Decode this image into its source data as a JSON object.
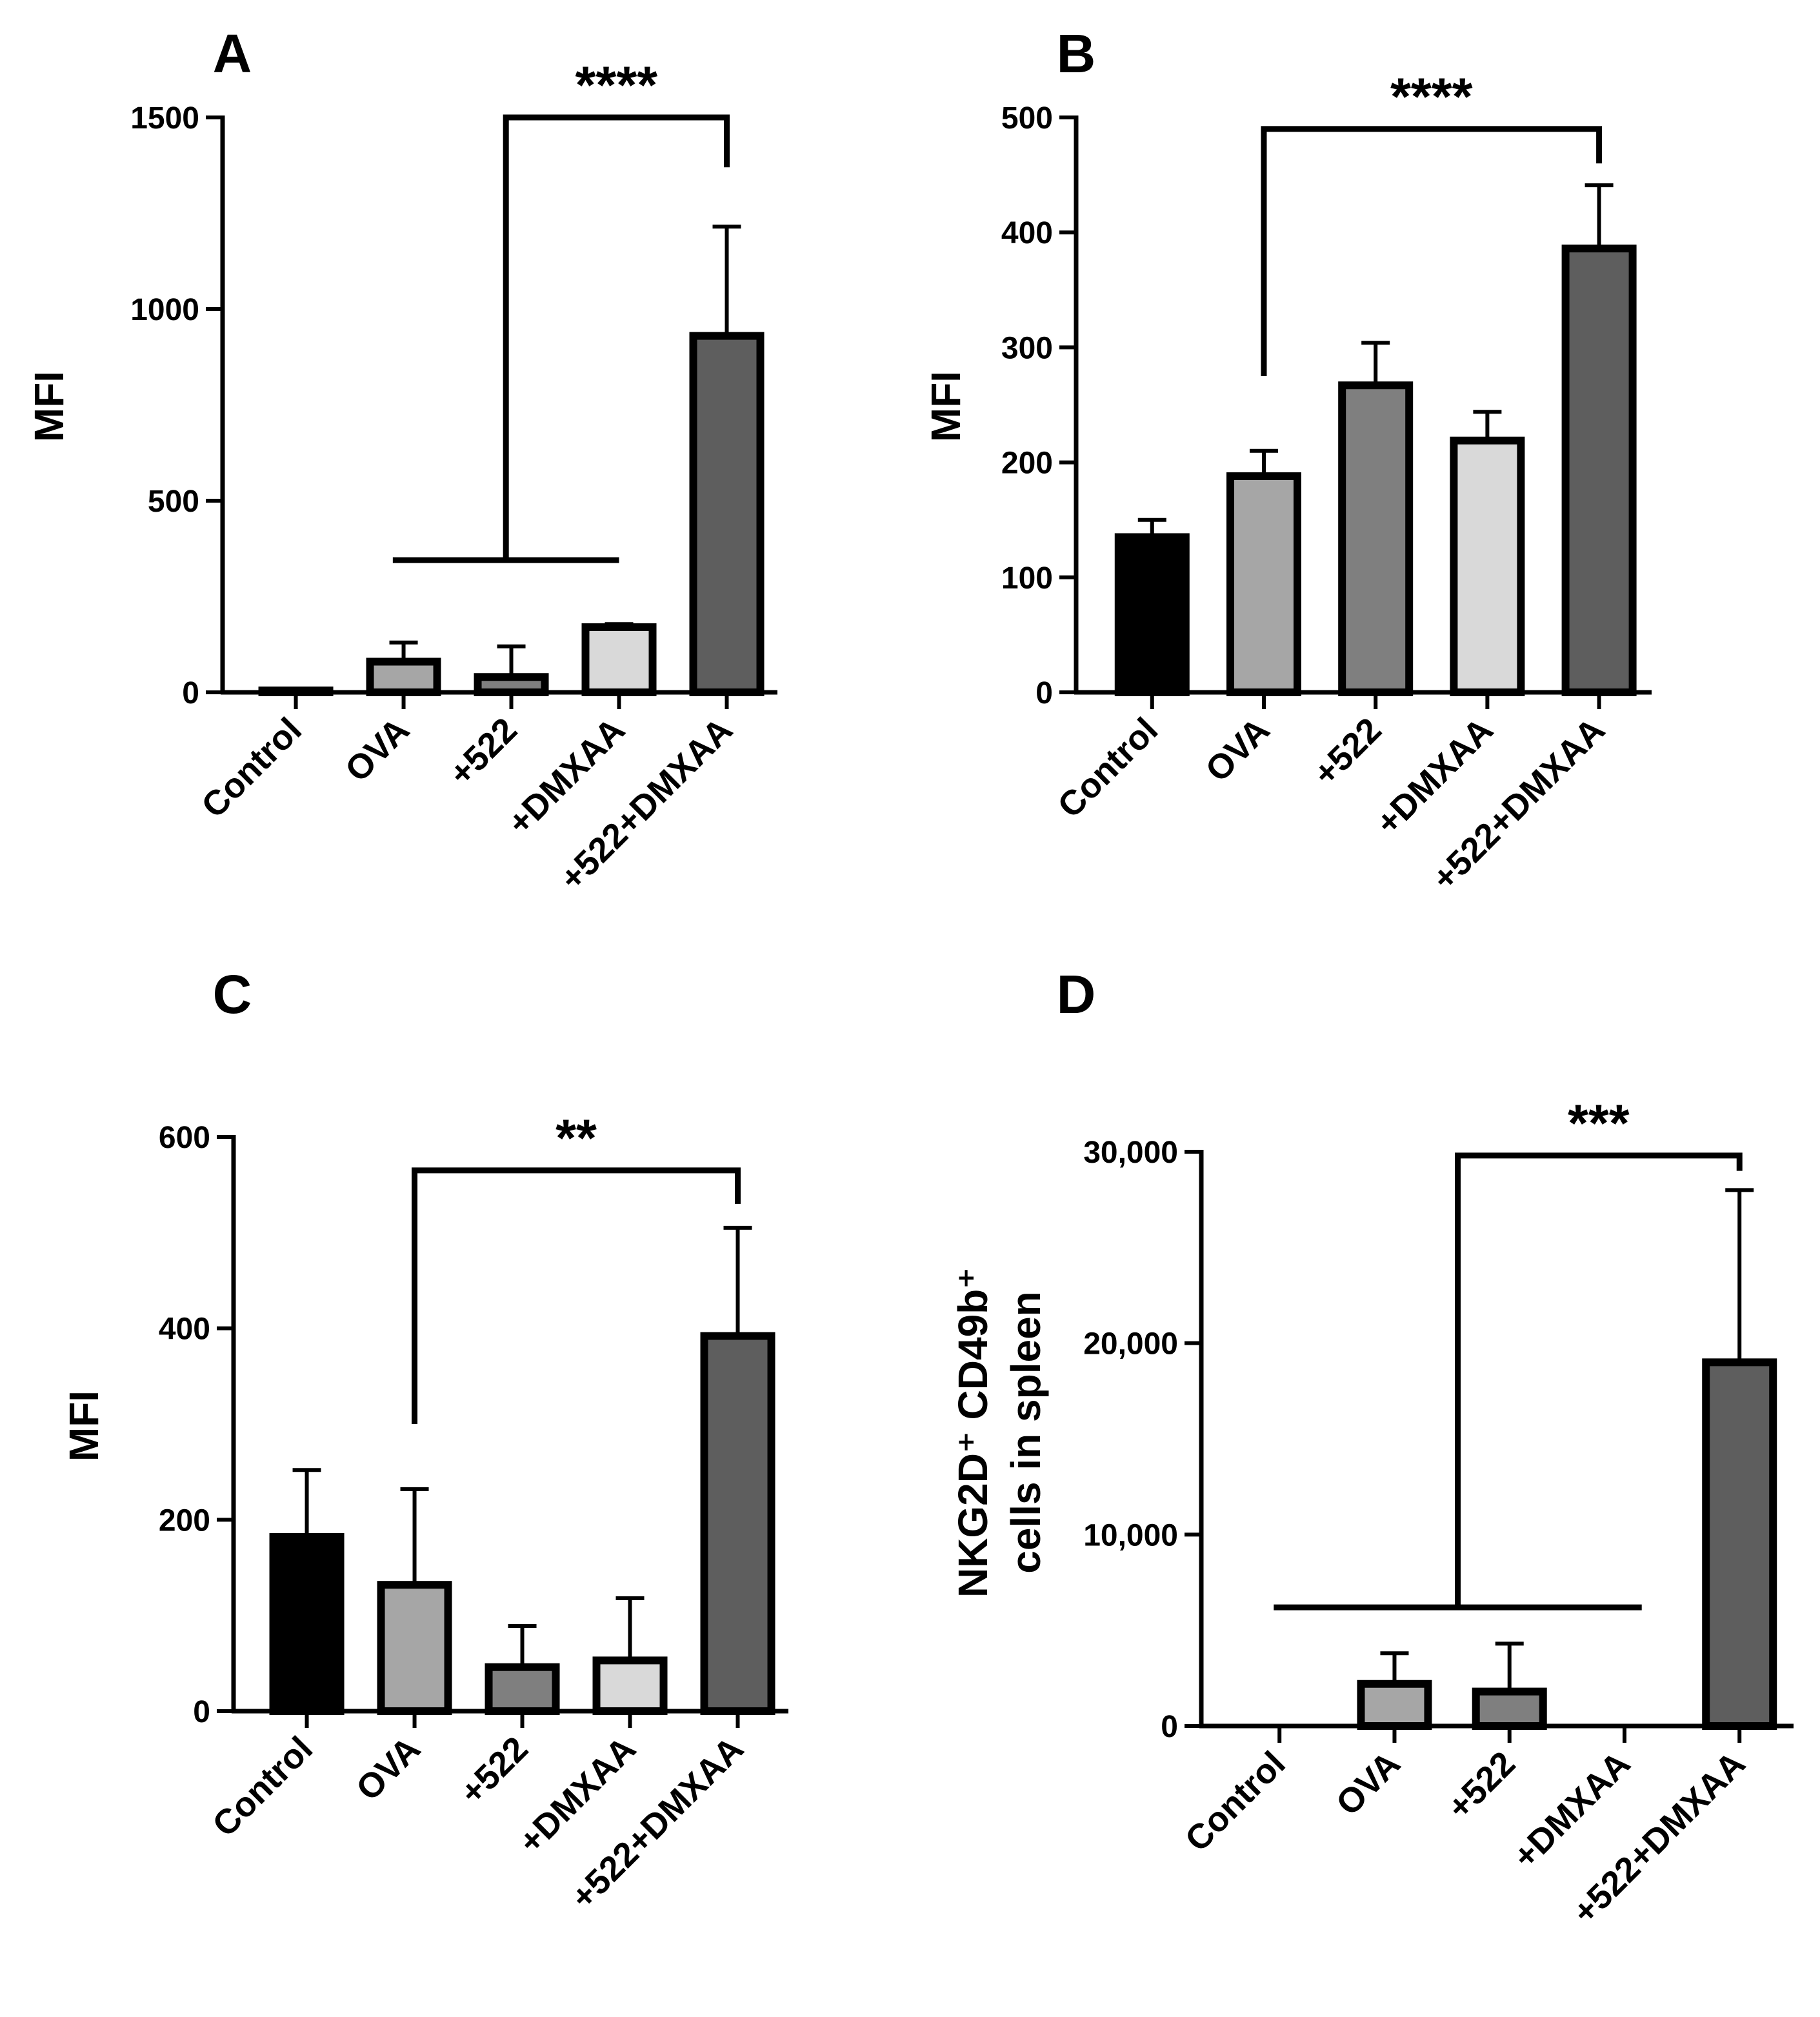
{
  "figure": {
    "panels": [
      {
        "letter": "A",
        "ylabel": "MFI",
        "ytick_labels": [
          "0",
          "500",
          "1000",
          "1500"
        ],
        "significance": "****"
      },
      {
        "letter": "B",
        "ylabel": "MFI",
        "ytick_labels": [
          "0",
          "100",
          "200",
          "300",
          "400",
          "500"
        ],
        "significance": "****"
      },
      {
        "letter": "C",
        "ylabel": "MFI",
        "ytick_labels": [
          "0",
          "200",
          "400",
          "600"
        ],
        "significance": "**"
      },
      {
        "letter": "D",
        "ylabel_line1": "NKG2D⁺ CD49b⁺",
        "ylabel_line2": "cells in spleen",
        "ytick_labels": [
          "0",
          "10,000",
          "20,000",
          "30,000"
        ],
        "significance": "***"
      }
    ]
  },
  "chart_data": [
    {
      "type": "bar",
      "panel": "A",
      "categories": [
        "Control",
        "OVA",
        "+522",
        "+DMXAA",
        "+522+DMXAA"
      ],
      "values": [
        5,
        80,
        40,
        170,
        930
      ],
      "errors": [
        0,
        50,
        80,
        8,
        285
      ],
      "ylabel": "MFI",
      "ylim": [
        0,
        1500
      ],
      "yticks": [
        0,
        500,
        1000,
        1500
      ],
      "bar_colors": [
        "#000000",
        "#a6a6a6",
        "#7f7f7f",
        "#d9d9d9",
        "#5e5e5e"
      ],
      "significance": {
        "label": "****",
        "compare": "Control–+DMXAA vs +522+DMXAA",
        "bracket_y": 1500,
        "bracket_to_y": 1370,
        "group_line_y": 345,
        "group_from": 0.9,
        "group_to": 3.0
      }
    },
    {
      "type": "bar",
      "panel": "B",
      "categories": [
        "Control",
        "OVA",
        "+522",
        "+DMXAA",
        "+522+DMXAA"
      ],
      "values": [
        135,
        188,
        267,
        219,
        386
      ],
      "errors": [
        15,
        22,
        37,
        25,
        55
      ],
      "ylabel": "MFI",
      "ylim": [
        0,
        500
      ],
      "yticks": [
        0,
        100,
        200,
        300,
        400,
        500
      ],
      "bar_colors": [
        "#000000",
        "#a6a6a6",
        "#7f7f7f",
        "#d9d9d9",
        "#5e5e5e"
      ],
      "significance": {
        "label": "****",
        "compare": "OVA vs +522+DMXAA",
        "bracket_y": 490,
        "left_to_y": 275,
        "right_to_y": 460
      }
    },
    {
      "type": "bar",
      "panel": "C",
      "categories": [
        "Control",
        "OVA",
        "+522",
        "+DMXAA",
        "+522+DMXAA"
      ],
      "values": [
        182,
        132,
        46,
        53,
        392
      ],
      "errors": [
        70,
        100,
        43,
        65,
        113
      ],
      "ylabel": "MFI",
      "ylim": [
        0,
        600
      ],
      "yticks": [
        0,
        200,
        400,
        600
      ],
      "bar_colors": [
        "#000000",
        "#a6a6a6",
        "#7f7f7f",
        "#d9d9d9",
        "#5e5e5e"
      ],
      "significance": {
        "label": "**",
        "compare": "OVA vs +522+DMXAA",
        "bracket_y": 565,
        "left_to_y": 300,
        "right_to_y": 530
      }
    },
    {
      "type": "bar",
      "panel": "D",
      "categories": [
        "Control",
        "OVA",
        "+522",
        "+DMXAA",
        "+522+DMXAA"
      ],
      "values": [
        0,
        2200,
        1800,
        0,
        19000
      ],
      "errors": [
        0,
        1600,
        2500,
        0,
        9000
      ],
      "ylabel": "NKG2D⁺ CD49b⁺ cells in spleen",
      "ylim": [
        0,
        30000
      ],
      "yticks": [
        0,
        10000,
        20000,
        30000
      ],
      "bar_colors": [
        "#000000",
        "#a6a6a6",
        "#7f7f7f",
        "#d9d9d9",
        "#5e5e5e"
      ],
      "significance": {
        "label": "***",
        "compare": "Control–+DMXAA vs +522+DMXAA",
        "bracket_y": 29800,
        "bracket_to_y": 29000,
        "group_line_y": 6200,
        "group_from": -0.05,
        "group_to": 3.15
      }
    }
  ]
}
